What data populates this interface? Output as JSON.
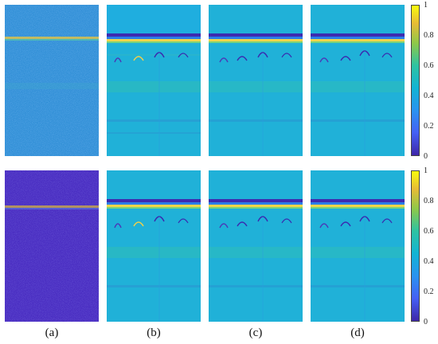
{
  "figure": {
    "rows": [
      {
        "panels": [
          {
            "id": "a",
            "kind": "noisy",
            "background": "#2e8fd8"
          },
          {
            "id": "b",
            "kind": "denoised",
            "background": "#1fb0d8"
          },
          {
            "id": "c",
            "kind": "denoised",
            "background": "#1fb0d8"
          },
          {
            "id": "d",
            "kind": "denoised",
            "background": "#1fb0d8"
          }
        ],
        "colorbar_ticks": [
          "1",
          "0.8",
          "0.6",
          "0.4",
          "0.2",
          "0"
        ]
      },
      {
        "panels": [
          {
            "id": "a",
            "kind": "noisy",
            "background": "#4a2fc0"
          },
          {
            "id": "b",
            "kind": "denoised",
            "background": "#1fb0d8"
          },
          {
            "id": "c",
            "kind": "denoised",
            "background": "#1fb0d8"
          },
          {
            "id": "d",
            "kind": "denoised",
            "background": "#1fb0d8"
          }
        ],
        "colorbar_ticks": [
          "1",
          "0.8",
          "0.6",
          "0.4",
          "0.2",
          "0"
        ]
      }
    ],
    "column_labels": [
      "(a)",
      "(b)",
      "(c)",
      "(d)"
    ]
  }
}
